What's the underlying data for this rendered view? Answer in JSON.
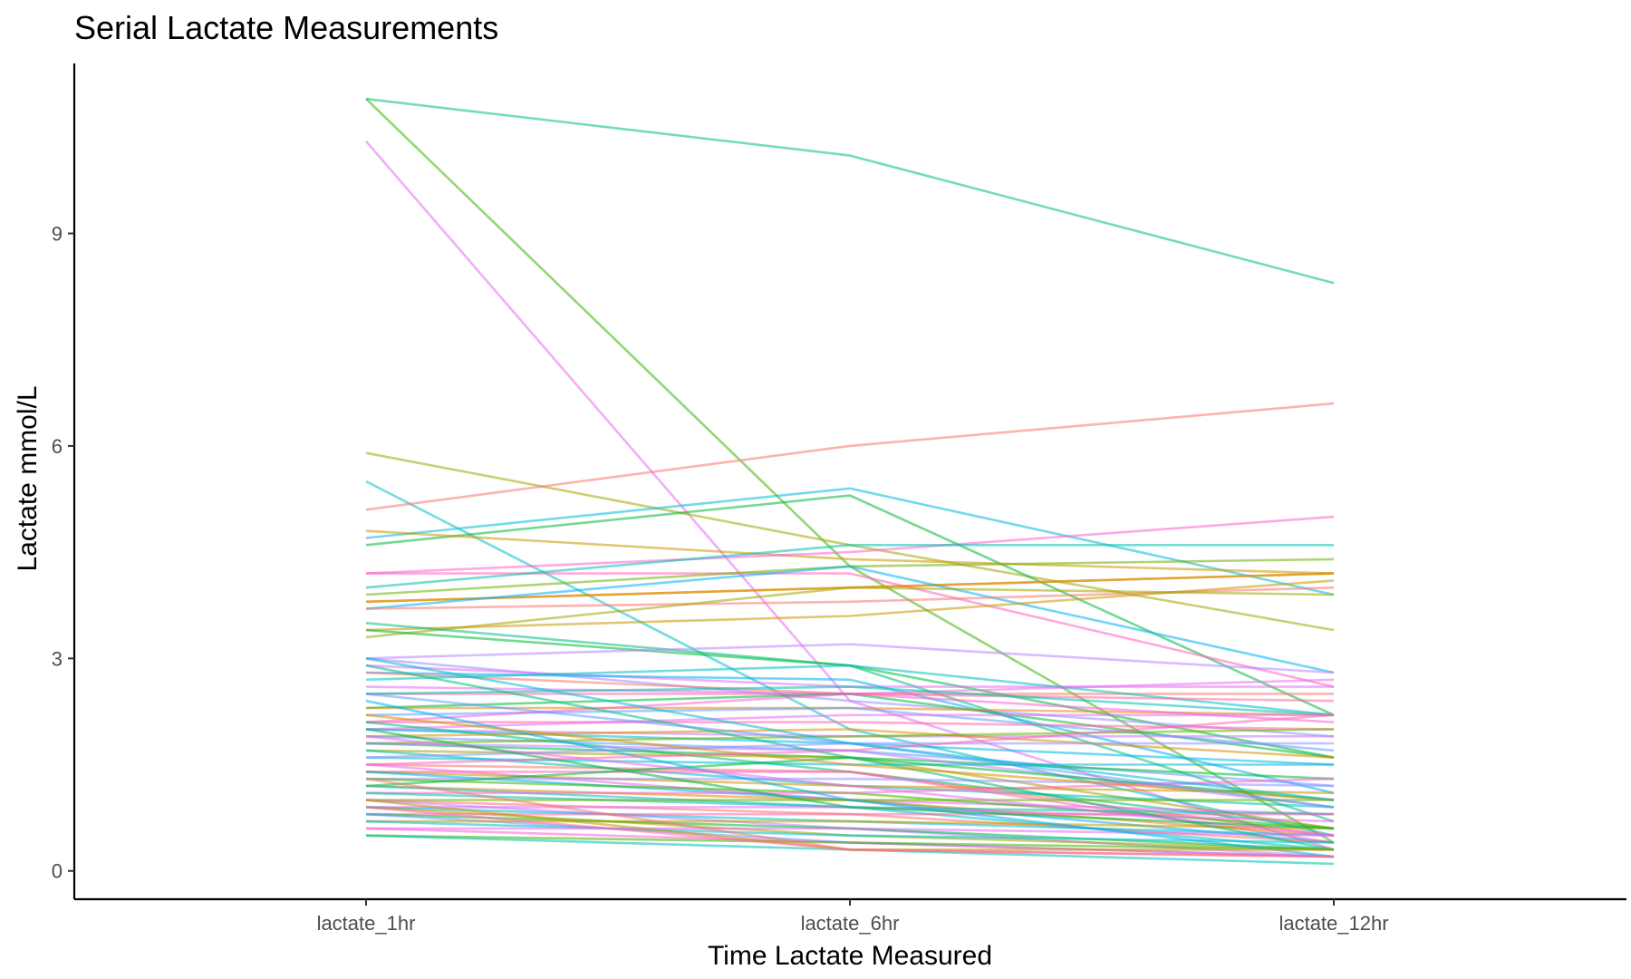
{
  "chart_data": {
    "type": "line",
    "title": "Serial Lactate Measurements",
    "xlabel": "Time Lactate Measured",
    "ylabel": "Lactate mmol/L",
    "categories": [
      "lactate_1hr",
      "lactate_6hr",
      "lactate_12hr"
    ],
    "ylim": [
      -0.4,
      11.4
    ],
    "yticks": [
      0,
      3,
      6,
      9
    ],
    "grid": false,
    "legend": "none",
    "palette": [
      "#F8766D",
      "#E58700",
      "#C99800",
      "#A3A500",
      "#6BB100",
      "#00BA38",
      "#00BF7D",
      "#00C0AF",
      "#00BCD8",
      "#00B0F6",
      "#619CFF",
      "#B983FF",
      "#E76BF3",
      "#FD61D1",
      "#FF67A4"
    ],
    "series": [
      {
        "values": [
          10.9,
          10.1,
          8.3
        ],
        "color": "#00BF7D"
      },
      {
        "values": [
          10.9,
          4.3,
          0.4
        ],
        "color": "#39B600"
      },
      {
        "values": [
          10.3,
          2.4,
          0.3
        ],
        "color": "#E76BF3"
      },
      {
        "values": [
          5.9,
          4.6,
          3.4
        ],
        "color": "#A3A500"
      },
      {
        "values": [
          5.5,
          2.0,
          0.5
        ],
        "color": "#00BFC4"
      },
      {
        "values": [
          5.1,
          6.0,
          6.6
        ],
        "color": "#F8766D"
      },
      {
        "values": [
          4.7,
          5.4,
          3.9
        ],
        "color": "#00BCD8"
      },
      {
        "values": [
          4.6,
          5.3,
          2.2
        ],
        "color": "#00BA38"
      },
      {
        "values": [
          4.8,
          4.4,
          4.2
        ],
        "color": "#C99800"
      },
      {
        "values": [
          4.2,
          4.5,
          5.0
        ],
        "color": "#FD61D1"
      },
      {
        "values": [
          4.2,
          4.2,
          2.6
        ],
        "color": "#FF62BC"
      },
      {
        "values": [
          4.0,
          4.6,
          4.6
        ],
        "color": "#00C0AF"
      },
      {
        "values": [
          3.9,
          4.3,
          4.4
        ],
        "color": "#6BB100"
      },
      {
        "values": [
          3.8,
          4.0,
          4.2
        ],
        "color": "#E58700"
      },
      {
        "values": [
          3.8,
          4.0,
          4.2
        ],
        "color": "#D89000"
      },
      {
        "values": [
          3.7,
          4.3,
          2.8
        ],
        "color": "#00B0F6"
      },
      {
        "values": [
          3.7,
          3.8,
          4.0
        ],
        "color": "#F8766D"
      },
      {
        "values": [
          3.4,
          3.6,
          4.1
        ],
        "color": "#C99800"
      },
      {
        "values": [
          3.3,
          4.0,
          3.9
        ],
        "color": "#A3A500"
      },
      {
        "values": [
          3.5,
          2.9,
          0.7
        ],
        "color": "#00BF7D"
      },
      {
        "values": [
          3.4,
          2.9,
          1.6
        ],
        "color": "#00BA38"
      },
      {
        "values": [
          3.0,
          3.2,
          2.8
        ],
        "color": "#B983FF"
      },
      {
        "values": [
          3.0,
          2.4,
          1.9
        ],
        "color": "#9590FF"
      },
      {
        "values": [
          2.9,
          2.6,
          2.6
        ],
        "color": "#E76BF3"
      },
      {
        "values": [
          2.8,
          2.7,
          1.1
        ],
        "color": "#00B0F6"
      },
      {
        "values": [
          2.8,
          2.5,
          2.5
        ],
        "color": "#F8766D"
      },
      {
        "values": [
          2.7,
          2.9,
          2.2
        ],
        "color": "#00BFC4"
      },
      {
        "values": [
          2.6,
          2.5,
          2.7
        ],
        "color": "#E76BF3"
      },
      {
        "values": [
          2.5,
          2.5,
          2.4
        ],
        "color": "#FF67A4"
      },
      {
        "values": [
          2.5,
          2.6,
          2.2
        ],
        "color": "#00C0AF"
      },
      {
        "values": [
          2.3,
          2.5,
          1.6
        ],
        "color": "#00BA38"
      },
      {
        "values": [
          2.3,
          2.3,
          2.2
        ],
        "color": "#E7861B"
      },
      {
        "values": [
          2.2,
          2.3,
          1.7
        ],
        "color": "#619CFF"
      },
      {
        "values": [
          2.1,
          2.5,
          2.1
        ],
        "color": "#FD61D1"
      },
      {
        "values": [
          2.1,
          2.1,
          2.0
        ],
        "color": "#FF67A4"
      },
      {
        "values": [
          2.0,
          2.2,
          2.2
        ],
        "color": "#E76BF3"
      },
      {
        "values": [
          2.0,
          1.9,
          1.9
        ],
        "color": "#C77CFF"
      },
      {
        "values": [
          2.0,
          1.8,
          1.5
        ],
        "color": "#00B8E7"
      },
      {
        "values": [
          2.1,
          1.4,
          0.6
        ],
        "color": "#00BF7D"
      },
      {
        "values": [
          1.9,
          2.0,
          1.6
        ],
        "color": "#D89000"
      },
      {
        "values": [
          1.9,
          1.7,
          1.2
        ],
        "color": "#619CFF"
      },
      {
        "values": [
          1.8,
          1.9,
          2.0
        ],
        "color": "#6BB100"
      },
      {
        "values": [
          1.8,
          1.6,
          1.3
        ],
        "color": "#00BA38"
      },
      {
        "values": [
          1.8,
          1.7,
          0.9
        ],
        "color": "#B983FF"
      },
      {
        "values": [
          1.7,
          1.6,
          0.6
        ],
        "color": "#A3A500"
      },
      {
        "values": [
          1.7,
          1.2,
          0.9
        ],
        "color": "#00C0AF"
      },
      {
        "values": [
          1.6,
          1.5,
          1.5
        ],
        "color": "#00BCD8"
      },
      {
        "values": [
          1.5,
          1.4,
          0.5
        ],
        "color": "#F8766D"
      },
      {
        "values": [
          1.5,
          1.0,
          0.8
        ],
        "color": "#E76BF3"
      },
      {
        "values": [
          1.4,
          1.4,
          0.4
        ],
        "color": "#FF62BC"
      },
      {
        "values": [
          1.4,
          1.2,
          1.1
        ],
        "color": "#C99800"
      },
      {
        "values": [
          1.4,
          1.0,
          0.4
        ],
        "color": "#00B0F6"
      },
      {
        "values": [
          1.3,
          1.3,
          1.2
        ],
        "color": "#9590FF"
      },
      {
        "values": [
          1.3,
          1.1,
          0.6
        ],
        "color": "#39B600"
      },
      {
        "values": [
          1.2,
          1.6,
          1.0
        ],
        "color": "#00BA38"
      },
      {
        "values": [
          1.2,
          1.0,
          0.5
        ],
        "color": "#E58700"
      },
      {
        "values": [
          1.2,
          0.9,
          0.3
        ],
        "color": "#00BFC4"
      },
      {
        "values": [
          1.1,
          1.1,
          1.3
        ],
        "color": "#FD61D1"
      },
      {
        "values": [
          1.1,
          0.9,
          0.8
        ],
        "color": "#00C0AF"
      },
      {
        "values": [
          1.0,
          1.0,
          1.0
        ],
        "color": "#6BB100"
      },
      {
        "values": [
          1.0,
          0.8,
          0.4
        ],
        "color": "#F8766D"
      },
      {
        "values": [
          1.0,
          0.6,
          0.2
        ],
        "color": "#B983FF"
      },
      {
        "values": [
          0.9,
          0.9,
          0.7
        ],
        "color": "#E76BF3"
      },
      {
        "values": [
          0.9,
          0.7,
          0.5
        ],
        "color": "#00BCD8"
      },
      {
        "values": [
          0.9,
          0.5,
          0.3
        ],
        "color": "#A3A500"
      },
      {
        "values": [
          0.8,
          0.8,
          0.8
        ],
        "color": "#FF67A4"
      },
      {
        "values": [
          0.8,
          0.6,
          0.3
        ],
        "color": "#00BA38"
      },
      {
        "values": [
          0.8,
          0.4,
          0.2
        ],
        "color": "#619CFF"
      },
      {
        "values": [
          0.7,
          0.7,
          0.6
        ],
        "color": "#C99800"
      },
      {
        "values": [
          0.7,
          0.5,
          0.4
        ],
        "color": "#00BFC4"
      },
      {
        "values": [
          0.6,
          0.6,
          0.5
        ],
        "color": "#E76BF3"
      },
      {
        "values": [
          0.6,
          0.4,
          0.2
        ],
        "color": "#FD61D1"
      },
      {
        "values": [
          0.5,
          0.4,
          0.3
        ],
        "color": "#39B600"
      },
      {
        "values": [
          0.5,
          0.3,
          0.1
        ],
        "color": "#00C0AF"
      },
      {
        "values": [
          2.4,
          1.0,
          0.2
        ],
        "color": "#00B0F6"
      },
      {
        "values": [
          2.9,
          1.6,
          0.3
        ],
        "color": "#00BF7D"
      },
      {
        "values": [
          1.6,
          1.8,
          1.8
        ],
        "color": "#9590FF"
      },
      {
        "values": [
          2.2,
          1.5,
          1.0
        ],
        "color": "#D89000"
      },
      {
        "values": [
          1.9,
          1.2,
          0.5
        ],
        "color": "#E76BF3"
      },
      {
        "values": [
          1.3,
          0.3,
          0.2
        ],
        "color": "#F8766D"
      },
      {
        "values": [
          2.0,
          0.9,
          0.6
        ],
        "color": "#00BA38"
      },
      {
        "values": [
          1.5,
          1.7,
          2.2
        ],
        "color": "#FF62BC"
      },
      {
        "values": [
          2.5,
          1.8,
          0.9
        ],
        "color": "#619CFF"
      },
      {
        "values": [
          3.0,
          1.8,
          1.0
        ],
        "color": "#00BCD8"
      },
      {
        "values": [
          1.0,
          0.3,
          0.3
        ],
        "color": "#C99800"
      },
      {
        "values": [
          0.9,
          0.3,
          0.2
        ],
        "color": "#FF67A4"
      }
    ]
  }
}
